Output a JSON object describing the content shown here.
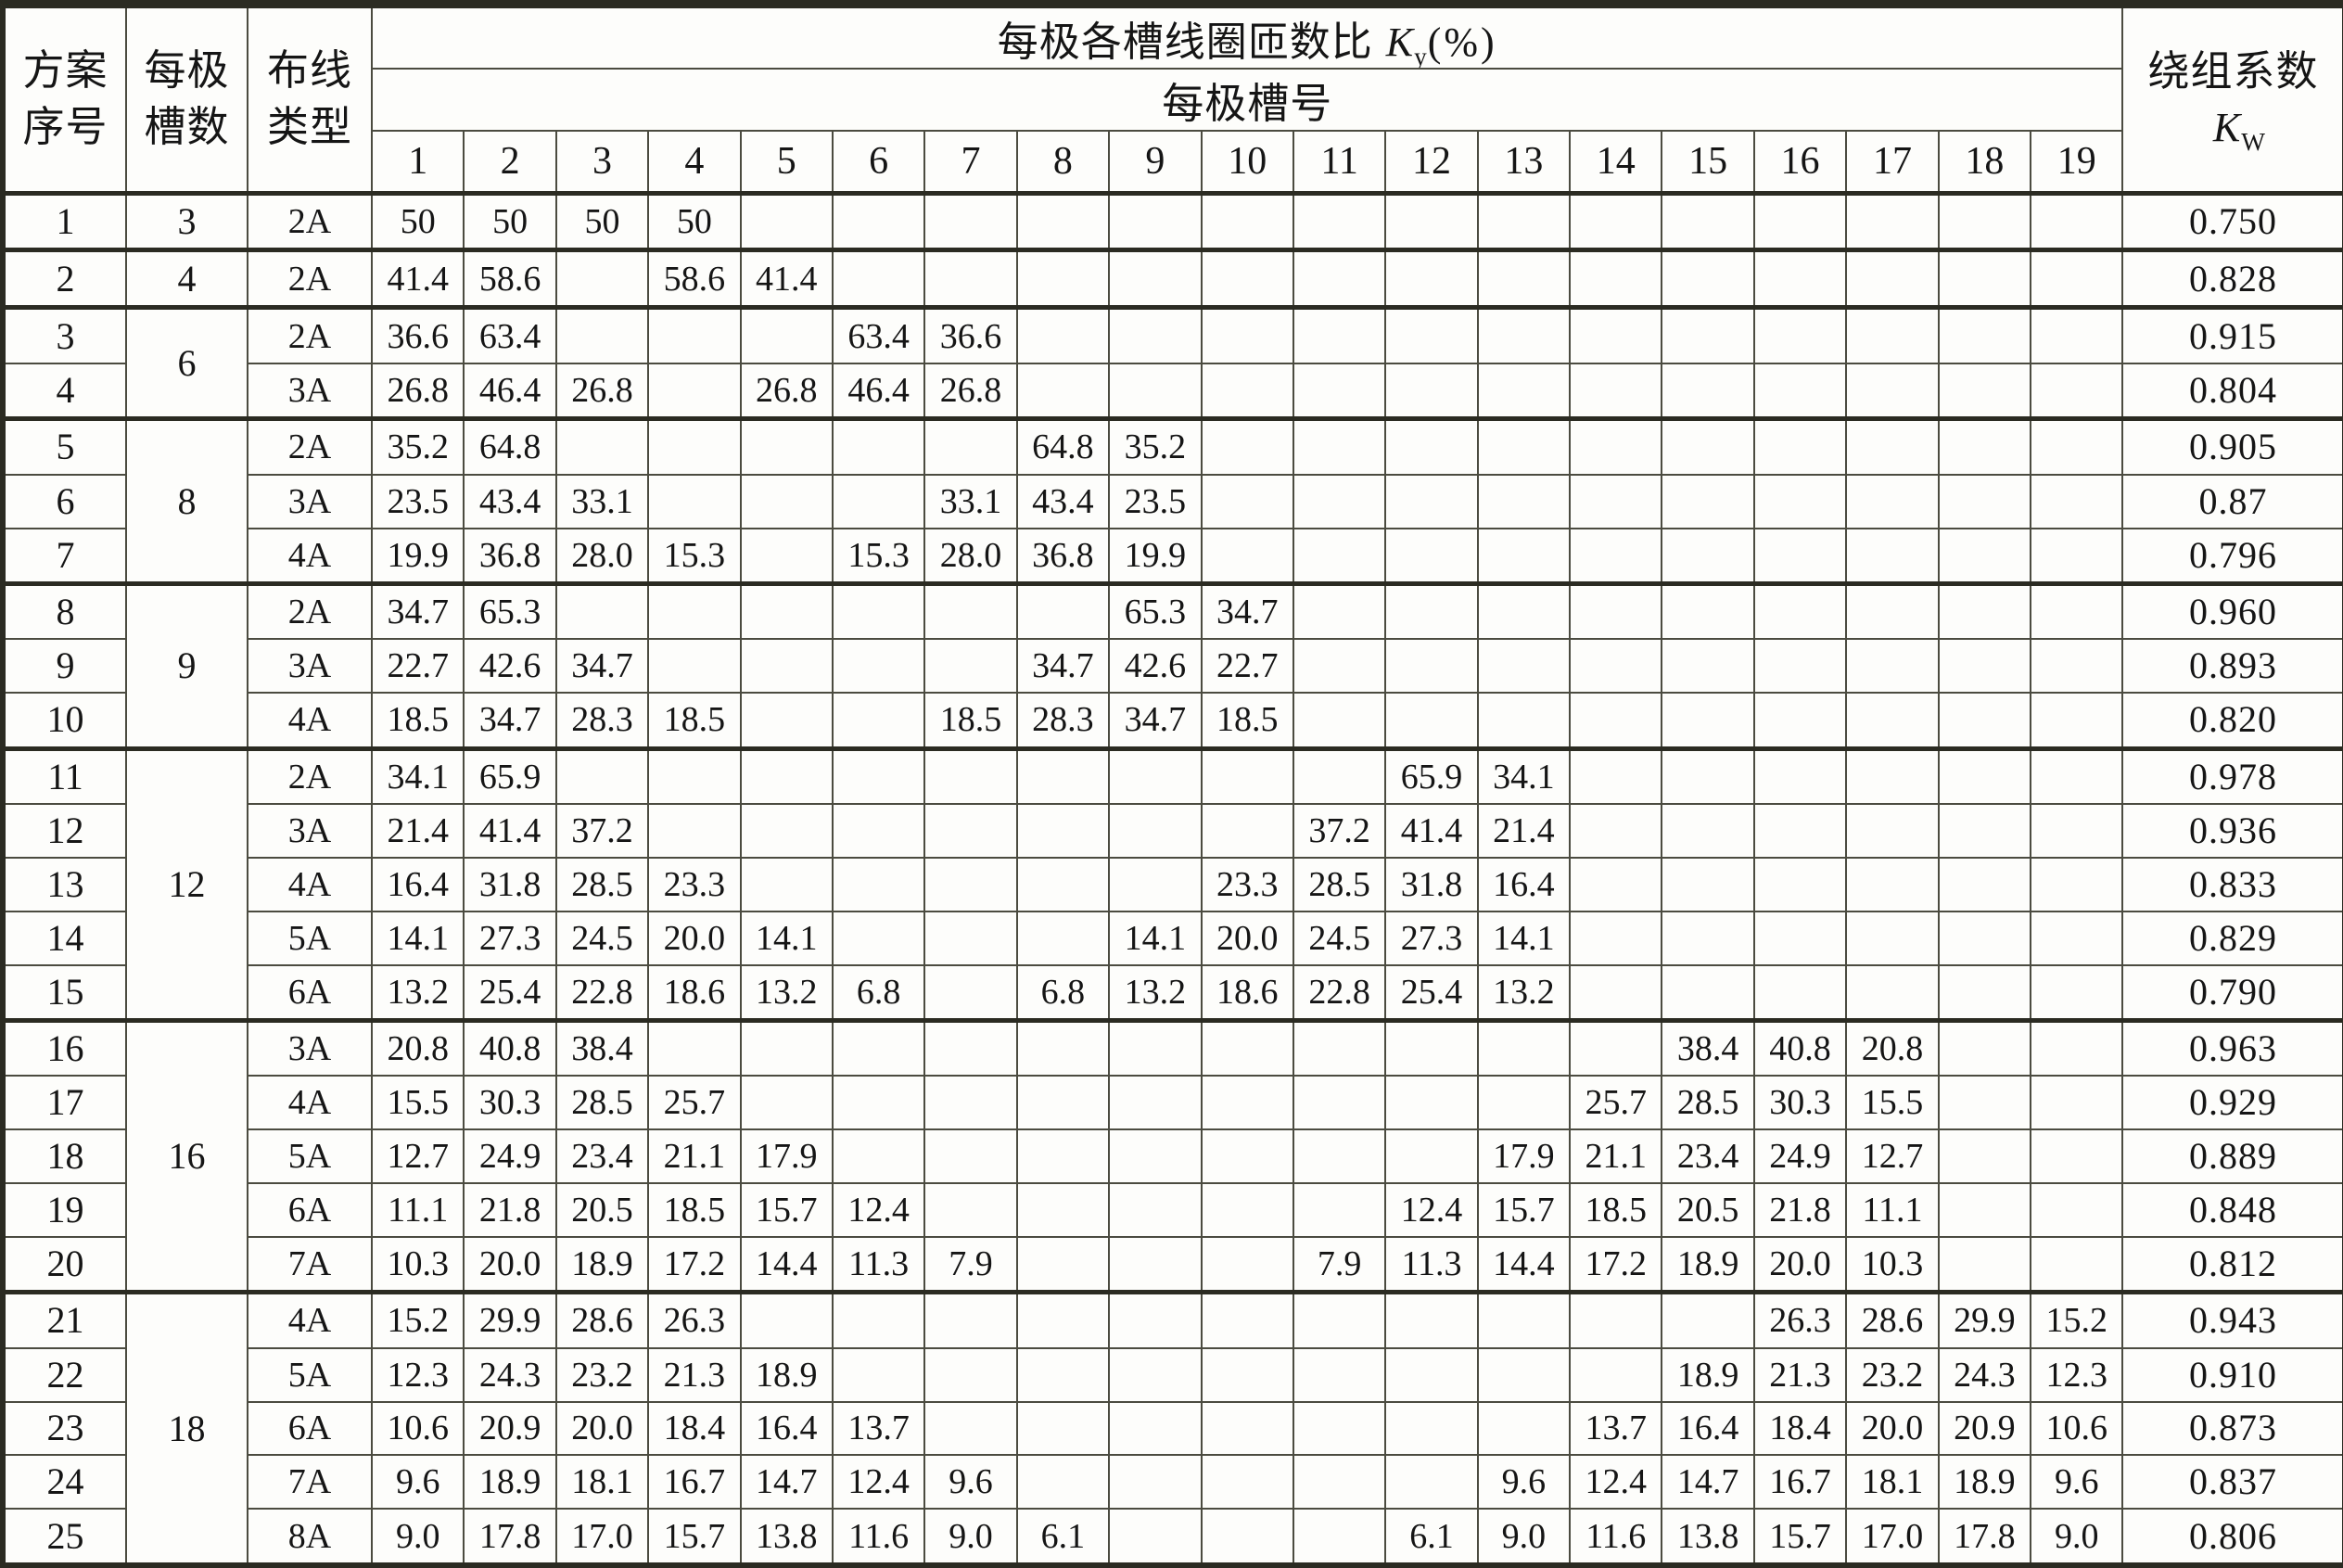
{
  "table": {
    "header": {
      "scheme": {
        "line1": "方案",
        "line2": "序号"
      },
      "slots": {
        "line1": "每极",
        "line2": "槽数"
      },
      "wiring": {
        "line1": "布线",
        "line2": "类型"
      },
      "ky": {
        "title": "每极各槽线圈匝数比",
        "symbol": "K",
        "subscript": "y",
        "unit": "(%)"
      },
      "slot_no_label": "每极槽号",
      "slot_numbers": [
        "1",
        "2",
        "3",
        "4",
        "5",
        "6",
        "7",
        "8",
        "9",
        "10",
        "11",
        "12",
        "13",
        "14",
        "15",
        "16",
        "17",
        "18",
        "19"
      ],
      "kw": {
        "title": "绕组系数",
        "symbol": "K",
        "subscript": "W"
      }
    },
    "groups": [
      {
        "slots_per_pole": "3",
        "rows": [
          {
            "no": "1",
            "type": "2A",
            "values": [
              "50",
              "50",
              "50",
              "50",
              "",
              "",
              "",
              "",
              "",
              "",
              "",
              "",
              "",
              "",
              "",
              "",
              "",
              "",
              ""
            ],
            "kw": "0.750"
          }
        ]
      },
      {
        "slots_per_pole": "4",
        "rows": [
          {
            "no": "2",
            "type": "2A",
            "values": [
              "41.4",
              "58.6",
              "",
              "58.6",
              "41.4",
              "",
              "",
              "",
              "",
              "",
              "",
              "",
              "",
              "",
              "",
              "",
              "",
              "",
              ""
            ],
            "kw": "0.828"
          }
        ]
      },
      {
        "slots_per_pole": "6",
        "rows": [
          {
            "no": "3",
            "type": "2A",
            "values": [
              "36.6",
              "63.4",
              "",
              "",
              "",
              "63.4",
              "36.6",
              "",
              "",
              "",
              "",
              "",
              "",
              "",
              "",
              "",
              "",
              "",
              ""
            ],
            "kw": "0.915"
          },
          {
            "no": "4",
            "type": "3A",
            "values": [
              "26.8",
              "46.4",
              "26.8",
              "",
              "26.8",
              "46.4",
              "26.8",
              "",
              "",
              "",
              "",
              "",
              "",
              "",
              "",
              "",
              "",
              "",
              ""
            ],
            "kw": "0.804"
          }
        ]
      },
      {
        "slots_per_pole": "8",
        "rows": [
          {
            "no": "5",
            "type": "2A",
            "values": [
              "35.2",
              "64.8",
              "",
              "",
              "",
              "",
              "",
              "64.8",
              "35.2",
              "",
              "",
              "",
              "",
              "",
              "",
              "",
              "",
              "",
              ""
            ],
            "kw": "0.905"
          },
          {
            "no": "6",
            "type": "3A",
            "values": [
              "23.5",
              "43.4",
              "33.1",
              "",
              "",
              "",
              "33.1",
              "43.4",
              "23.5",
              "",
              "",
              "",
              "",
              "",
              "",
              "",
              "",
              "",
              ""
            ],
            "kw": "0.87"
          },
          {
            "no": "7",
            "type": "4A",
            "values": [
              "19.9",
              "36.8",
              "28.0",
              "15.3",
              "",
              "15.3",
              "28.0",
              "36.8",
              "19.9",
              "",
              "",
              "",
              "",
              "",
              "",
              "",
              "",
              "",
              ""
            ],
            "kw": "0.796"
          }
        ]
      },
      {
        "slots_per_pole": "9",
        "rows": [
          {
            "no": "8",
            "type": "2A",
            "values": [
              "34.7",
              "65.3",
              "",
              "",
              "",
              "",
              "",
              "",
              "65.3",
              "34.7",
              "",
              "",
              "",
              "",
              "",
              "",
              "",
              "",
              ""
            ],
            "kw": "0.960"
          },
          {
            "no": "9",
            "type": "3A",
            "values": [
              "22.7",
              "42.6",
              "34.7",
              "",
              "",
              "",
              "",
              "34.7",
              "42.6",
              "22.7",
              "",
              "",
              "",
              "",
              "",
              "",
              "",
              "",
              ""
            ],
            "kw": "0.893"
          },
          {
            "no": "10",
            "type": "4A",
            "values": [
              "18.5",
              "34.7",
              "28.3",
              "18.5",
              "",
              "",
              "18.5",
              "28.3",
              "34.7",
              "18.5",
              "",
              "",
              "",
              "",
              "",
              "",
              "",
              "",
              ""
            ],
            "kw": "0.820"
          }
        ]
      },
      {
        "slots_per_pole": "12",
        "rows": [
          {
            "no": "11",
            "type": "2A",
            "values": [
              "34.1",
              "65.9",
              "",
              "",
              "",
              "",
              "",
              "",
              "",
              "",
              "",
              "65.9",
              "34.1",
              "",
              "",
              "",
              "",
              "",
              ""
            ],
            "kw": "0.978"
          },
          {
            "no": "12",
            "type": "3A",
            "values": [
              "21.4",
              "41.4",
              "37.2",
              "",
              "",
              "",
              "",
              "",
              "",
              "",
              "37.2",
              "41.4",
              "21.4",
              "",
              "",
              "",
              "",
              "",
              ""
            ],
            "kw": "0.936"
          },
          {
            "no": "13",
            "type": "4A",
            "values": [
              "16.4",
              "31.8",
              "28.5",
              "23.3",
              "",
              "",
              "",
              "",
              "",
              "23.3",
              "28.5",
              "31.8",
              "16.4",
              "",
              "",
              "",
              "",
              "",
              ""
            ],
            "kw": "0.833"
          },
          {
            "no": "14",
            "type": "5A",
            "values": [
              "14.1",
              "27.3",
              "24.5",
              "20.0",
              "14.1",
              "",
              "",
              "",
              "14.1",
              "20.0",
              "24.5",
              "27.3",
              "14.1",
              "",
              "",
              "",
              "",
              "",
              ""
            ],
            "kw": "0.829"
          },
          {
            "no": "15",
            "type": "6A",
            "values": [
              "13.2",
              "25.4",
              "22.8",
              "18.6",
              "13.2",
              "6.8",
              "",
              "6.8",
              "13.2",
              "18.6",
              "22.8",
              "25.4",
              "13.2",
              "",
              "",
              "",
              "",
              "",
              ""
            ],
            "kw": "0.790"
          }
        ]
      },
      {
        "slots_per_pole": "16",
        "rows": [
          {
            "no": "16",
            "type": "3A",
            "values": [
              "20.8",
              "40.8",
              "38.4",
              "",
              "",
              "",
              "",
              "",
              "",
              "",
              "",
              "",
              "",
              "",
              "38.4",
              "40.8",
              "20.8",
              "",
              ""
            ],
            "kw": "0.963"
          },
          {
            "no": "17",
            "type": "4A",
            "values": [
              "15.5",
              "30.3",
              "28.5",
              "25.7",
              "",
              "",
              "",
              "",
              "",
              "",
              "",
              "",
              "",
              "25.7",
              "28.5",
              "30.3",
              "15.5",
              "",
              ""
            ],
            "kw": "0.929"
          },
          {
            "no": "18",
            "type": "5A",
            "values": [
              "12.7",
              "24.9",
              "23.4",
              "21.1",
              "17.9",
              "",
              "",
              "",
              "",
              "",
              "",
              "",
              "17.9",
              "21.1",
              "23.4",
              "24.9",
              "12.7",
              "",
              ""
            ],
            "kw": "0.889"
          },
          {
            "no": "19",
            "type": "6A",
            "values": [
              "11.1",
              "21.8",
              "20.5",
              "18.5",
              "15.7",
              "12.4",
              "",
              "",
              "",
              "",
              "",
              "12.4",
              "15.7",
              "18.5",
              "20.5",
              "21.8",
              "11.1",
              "",
              ""
            ],
            "kw": "0.848"
          },
          {
            "no": "20",
            "type": "7A",
            "values": [
              "10.3",
              "20.0",
              "18.9",
              "17.2",
              "14.4",
              "11.3",
              "7.9",
              "",
              "",
              "",
              "7.9",
              "11.3",
              "14.4",
              "17.2",
              "18.9",
              "20.0",
              "10.3",
              "",
              ""
            ],
            "kw": "0.812"
          }
        ]
      },
      {
        "slots_per_pole": "18",
        "rows": [
          {
            "no": "21",
            "type": "4A",
            "values": [
              "15.2",
              "29.9",
              "28.6",
              "26.3",
              "",
              "",
              "",
              "",
              "",
              "",
              "",
              "",
              "",
              "",
              "",
              "26.3",
              "28.6",
              "29.9",
              "15.2"
            ],
            "kw": "0.943"
          },
          {
            "no": "22",
            "type": "5A",
            "values": [
              "12.3",
              "24.3",
              "23.2",
              "21.3",
              "18.9",
              "",
              "",
              "",
              "",
              "",
              "",
              "",
              "",
              "",
              "18.9",
              "21.3",
              "23.2",
              "24.3",
              "12.3"
            ],
            "kw": "0.910"
          },
          {
            "no": "23",
            "type": "6A",
            "values": [
              "10.6",
              "20.9",
              "20.0",
              "18.4",
              "16.4",
              "13.7",
              "",
              "",
              "",
              "",
              "",
              "",
              "",
              "13.7",
              "16.4",
              "18.4",
              "20.0",
              "20.9",
              "10.6"
            ],
            "kw": "0.873"
          },
          {
            "no": "24",
            "type": "7A",
            "values": [
              "9.6",
              "18.9",
              "18.1",
              "16.7",
              "14.7",
              "12.4",
              "9.6",
              "",
              "",
              "",
              "",
              "",
              "9.6",
              "12.4",
              "14.7",
              "16.7",
              "18.1",
              "18.9",
              "9.6"
            ],
            "kw": "0.837"
          },
          {
            "no": "25",
            "type": "8A",
            "values": [
              "9.0",
              "17.8",
              "17.0",
              "15.7",
              "13.8",
              "11.6",
              "9.0",
              "6.1",
              "",
              "",
              "",
              "6.1",
              "9.0",
              "11.6",
              "13.8",
              "15.7",
              "17.0",
              "17.8",
              "9.0"
            ],
            "kw": "0.806"
          }
        ]
      }
    ]
  }
}
